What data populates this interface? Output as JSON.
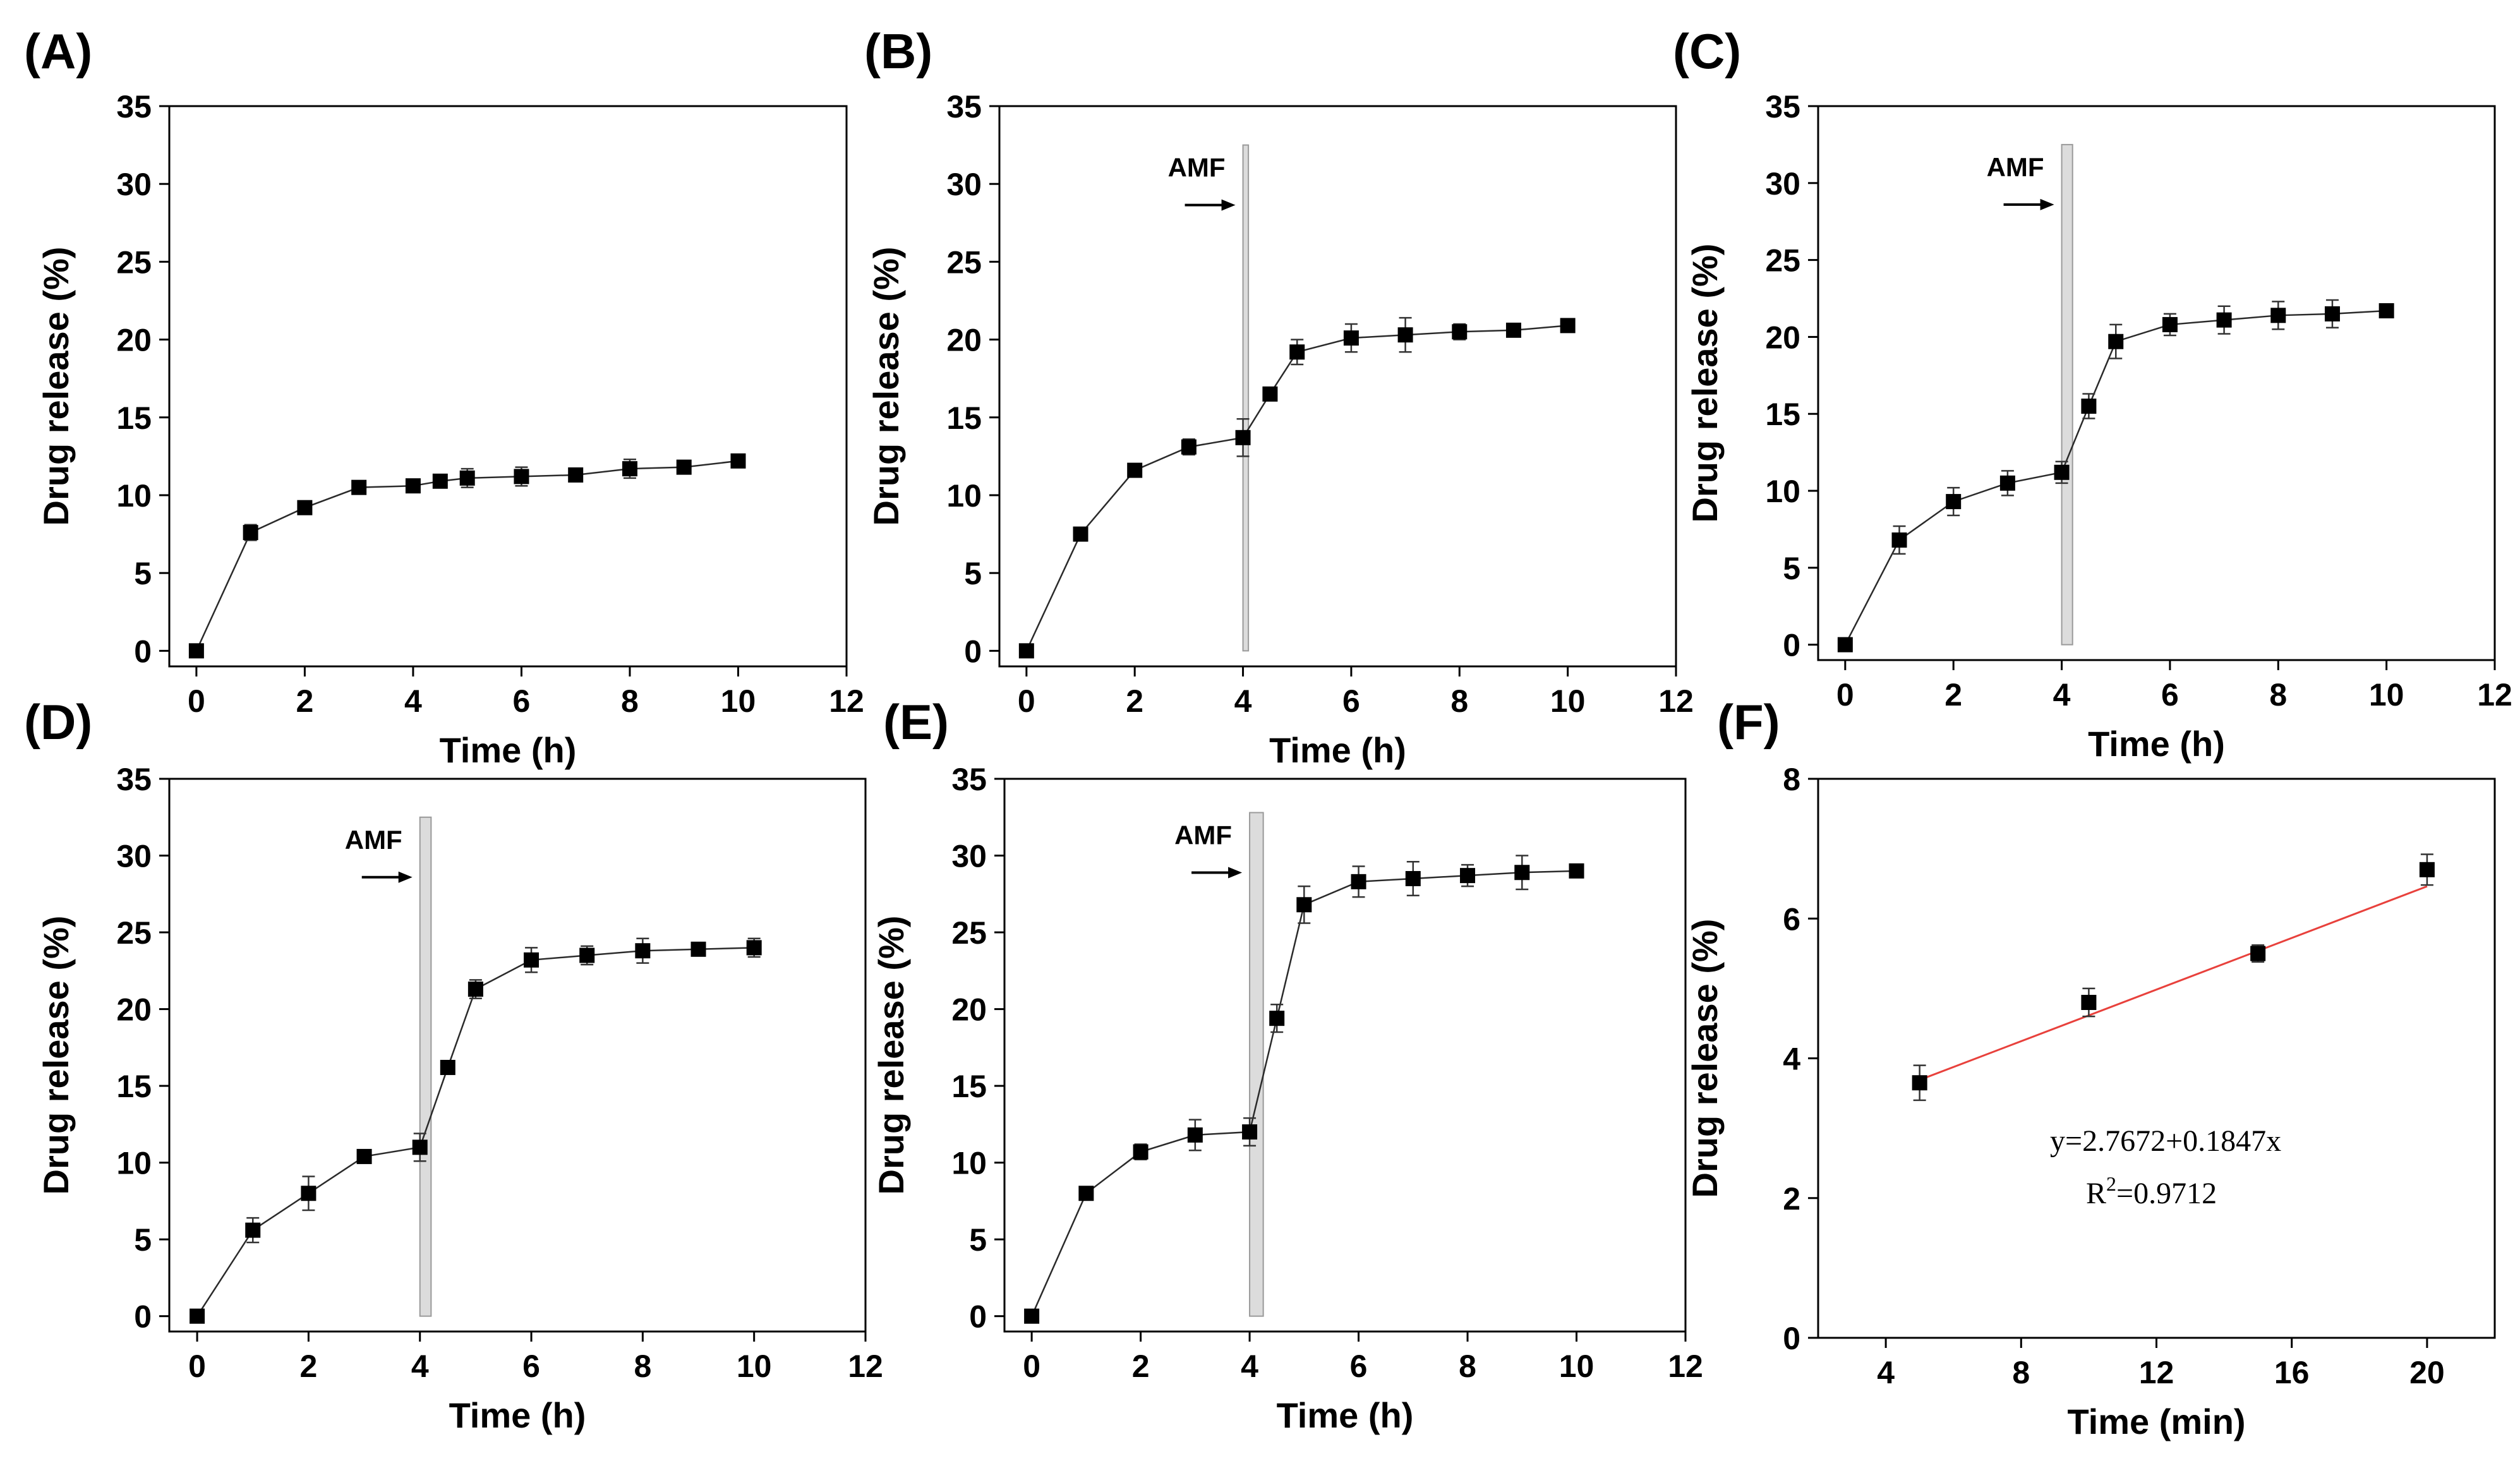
{
  "figure": {
    "panels": [
      "A",
      "B",
      "C",
      "D",
      "E",
      "F"
    ]
  },
  "chart_data": [
    {
      "id": "A",
      "label": "(A)",
      "type": "line",
      "xlabel": "Time (h)",
      "ylabel": "Drug release (%)",
      "xlim": [
        -0.5,
        12
      ],
      "ylim": [
        -1,
        35
      ],
      "xticks": [
        0,
        2,
        4,
        6,
        8,
        10,
        12
      ],
      "yticks": [
        0,
        5,
        10,
        15,
        20,
        25,
        30,
        35
      ],
      "series": [
        {
          "name": "release",
          "x": [
            0,
            1,
            2,
            3,
            4,
            4.5,
            5,
            6,
            7,
            8,
            9,
            10
          ],
          "y": [
            0,
            7.6,
            9.2,
            10.5,
            10.6,
            10.9,
            11.1,
            11.2,
            11.3,
            11.7,
            11.8,
            12.2
          ],
          "err": [
            0,
            0.5,
            0.3,
            0.2,
            0.2,
            0.2,
            0.6,
            0.6,
            0.3,
            0.6,
            0.4,
            0.3
          ]
        }
      ]
    },
    {
      "id": "B",
      "label": "(B)",
      "type": "line",
      "xlabel": "Time (h)",
      "ylabel": "Drug release (%)",
      "xlim": [
        -0.5,
        12
      ],
      "ylim": [
        -1,
        35
      ],
      "xticks": [
        0,
        2,
        4,
        6,
        8,
        10,
        12
      ],
      "yticks": [
        0,
        5,
        10,
        15,
        20,
        25,
        30,
        35
      ],
      "annotation": {
        "text": "AMF",
        "x_start": 4.0,
        "x_end": 4.1,
        "y_top": 32.5
      },
      "series": [
        {
          "name": "release",
          "x": [
            0,
            1,
            2,
            3,
            4,
            4.5,
            5,
            6,
            7,
            8,
            9,
            10
          ],
          "y": [
            0,
            7.5,
            11.6,
            13.1,
            13.7,
            16.5,
            19.2,
            20.1,
            20.3,
            20.5,
            20.6,
            20.9
          ],
          "err": [
            0,
            0.2,
            0.2,
            0.5,
            1.2,
            0.4,
            0.8,
            0.9,
            1.1,
            0.5,
            0.3,
            0.2
          ]
        }
      ]
    },
    {
      "id": "C",
      "label": "(C)",
      "type": "line",
      "xlabel": "Time (h)",
      "ylabel": "Drug release (%)",
      "xlim": [
        -0.5,
        12
      ],
      "ylim": [
        -1,
        35
      ],
      "xticks": [
        0,
        2,
        4,
        6,
        8,
        10,
        12
      ],
      "yticks": [
        0,
        5,
        10,
        15,
        20,
        25,
        30,
        35
      ],
      "annotation": {
        "text": "AMF",
        "x_start": 4.0,
        "x_end": 4.2,
        "y_top": 32.5
      },
      "series": [
        {
          "name": "release",
          "x": [
            0,
            1,
            2,
            3,
            4,
            4.5,
            5,
            6,
            7,
            8,
            9,
            10
          ],
          "y": [
            0,
            6.8,
            9.3,
            10.5,
            11.2,
            15.5,
            19.7,
            20.8,
            21.1,
            21.4,
            21.5,
            21.7
          ],
          "err": [
            0,
            0.9,
            0.9,
            0.8,
            0.7,
            0.8,
            1.1,
            0.7,
            0.9,
            0.9,
            0.9,
            0.3
          ]
        }
      ]
    },
    {
      "id": "D",
      "label": "(D)",
      "type": "line",
      "xlabel": "Time (h)",
      "ylabel": "Drug release (%)",
      "xlim": [
        -0.5,
        12
      ],
      "ylim": [
        -1,
        35
      ],
      "xticks": [
        0,
        2,
        4,
        6,
        8,
        10,
        12
      ],
      "yticks": [
        0,
        5,
        10,
        15,
        20,
        25,
        30,
        35
      ],
      "annotation": {
        "text": "AMF",
        "x_start": 4.0,
        "x_end": 4.2,
        "y_top": 32.5
      },
      "series": [
        {
          "name": "release",
          "x": [
            0,
            1,
            2,
            3,
            4,
            4.5,
            5,
            6,
            7,
            8,
            9,
            10
          ],
          "y": [
            0,
            5.6,
            8.0,
            10.4,
            11.0,
            16.2,
            21.3,
            23.2,
            23.5,
            23.8,
            23.9,
            24.0
          ],
          "err": [
            0,
            0.8,
            1.1,
            0.3,
            0.9,
            0.4,
            0.6,
            0.8,
            0.6,
            0.8,
            0.2,
            0.6
          ]
        }
      ]
    },
    {
      "id": "E",
      "label": "(E)",
      "type": "line",
      "xlabel": "Time (h)",
      "ylabel": "Drug release (%)",
      "xlim": [
        -0.5,
        12
      ],
      "ylim": [
        -1,
        35
      ],
      "xticks": [
        0,
        2,
        4,
        6,
        8,
        10,
        12
      ],
      "yticks": [
        0,
        5,
        10,
        15,
        20,
        25,
        30,
        35
      ],
      "annotation": {
        "text": "AMF",
        "x_start": 4.0,
        "x_end": 4.25,
        "y_top": 32.8
      },
      "series": [
        {
          "name": "release",
          "x": [
            0,
            1,
            2,
            3,
            4,
            4.5,
            5,
            6,
            7,
            8,
            9,
            10
          ],
          "y": [
            0,
            8.0,
            10.7,
            11.8,
            12.0,
            19.4,
            26.8,
            28.3,
            28.5,
            28.7,
            28.9,
            29.0
          ],
          "err": [
            0,
            0.2,
            0.5,
            1.0,
            0.9,
            0.9,
            1.2,
            1.0,
            1.1,
            0.7,
            1.1,
            0.4
          ]
        }
      ]
    },
    {
      "id": "F",
      "label": "(F)",
      "type": "scatter",
      "xlabel": "Time (min)",
      "ylabel": "Drug release (%)",
      "xlim": [
        2,
        22
      ],
      "ylim": [
        0,
        8
      ],
      "xticks": [
        4,
        8,
        12,
        16,
        20
      ],
      "yticks": [
        0,
        2,
        4,
        6,
        8
      ],
      "equation": "y=2.7672+0.1847x",
      "r2_label": "R",
      "r2_sup": "2",
      "r2_value": "=0.9712",
      "fit": {
        "intercept": 2.7672,
        "slope": 0.1847,
        "x_range": [
          5,
          20
        ],
        "color": "#e8413c"
      },
      "series": [
        {
          "name": "release",
          "x": [
            5,
            10,
            15,
            20
          ],
          "y": [
            3.65,
            4.8,
            5.5,
            6.7
          ],
          "err": [
            0.25,
            0.2,
            0.12,
            0.22
          ]
        }
      ]
    }
  ]
}
